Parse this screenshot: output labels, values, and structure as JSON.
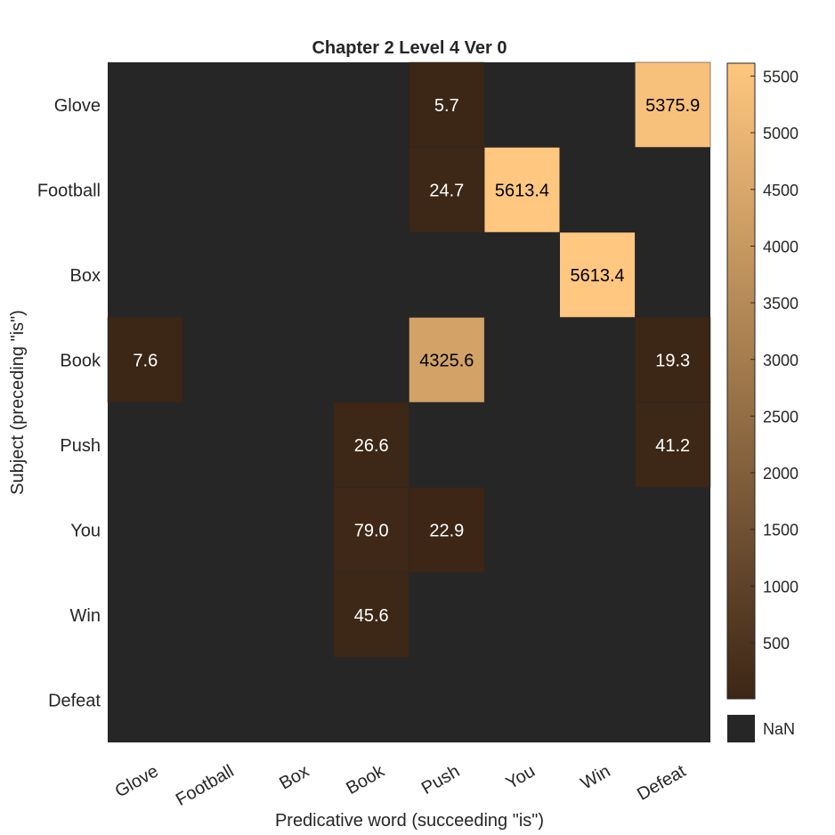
{
  "chart_data": {
    "type": "heatmap",
    "title": "Chapter 2 Level 4 Ver 0",
    "xlabel": "Predicative word (succeeding \"is\")",
    "ylabel": "Subject (preceding \"is\")",
    "x_categories": [
      "Glove",
      "Football",
      "Box",
      "Book",
      "Push",
      "You",
      "Win",
      "Defeat"
    ],
    "y_categories": [
      "Glove",
      "Football",
      "Box",
      "Book",
      "Push",
      "You",
      "Win",
      "Defeat"
    ],
    "values": [
      [
        null,
        null,
        null,
        null,
        5.7,
        null,
        null,
        5375.9
      ],
      [
        null,
        null,
        null,
        null,
        24.7,
        5613.4,
        null,
        null
      ],
      [
        null,
        null,
        null,
        null,
        null,
        null,
        5613.4,
        null
      ],
      [
        7.6,
        null,
        null,
        null,
        4325.6,
        null,
        null,
        19.3
      ],
      [
        null,
        null,
        null,
        26.6,
        null,
        null,
        null,
        41.2
      ],
      [
        null,
        null,
        null,
        79.0,
        22.9,
        null,
        null,
        null
      ],
      [
        null,
        null,
        null,
        45.6,
        null,
        null,
        null,
        null
      ],
      [
        null,
        null,
        null,
        null,
        null,
        null,
        null,
        null
      ]
    ],
    "colorbar": {
      "ticks": [
        500,
        1000,
        1500,
        2000,
        2500,
        3000,
        3500,
        4000,
        4500,
        5000,
        5500
      ],
      "range": [
        5.7,
        5613.4
      ],
      "nan_label": "NaN",
      "colormap": [
        "#3c2616",
        "#ffc77f"
      ],
      "nan_color": "#262626"
    },
    "grid": false
  }
}
